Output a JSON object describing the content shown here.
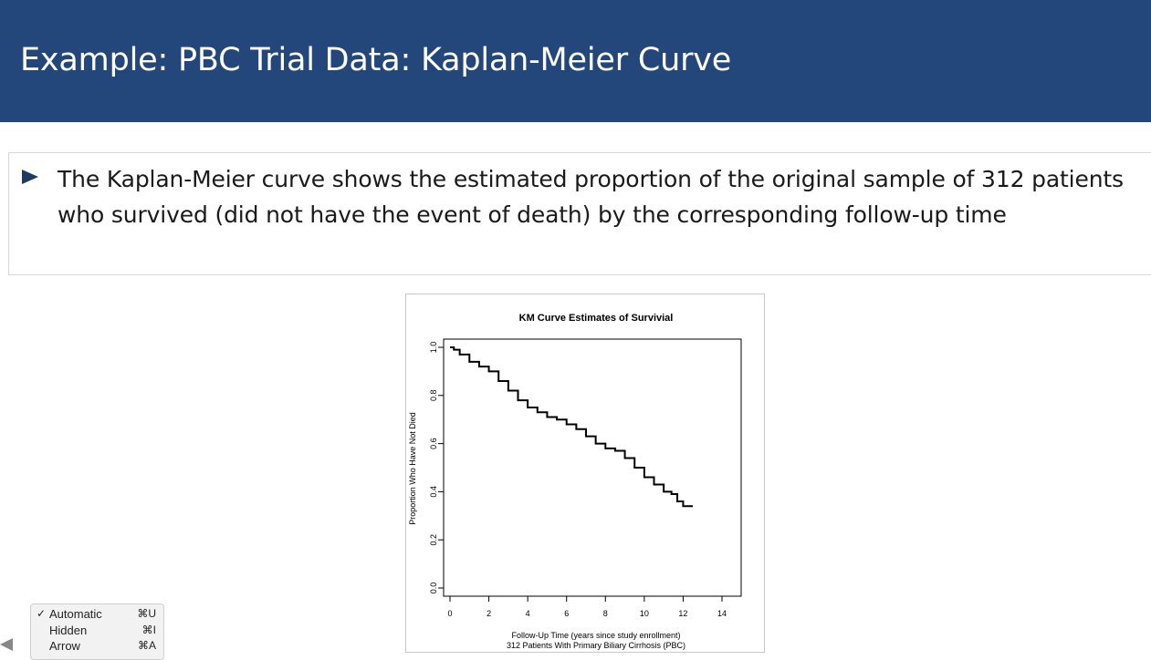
{
  "slide": {
    "title": "Example: PBC Trial Data: Kaplan-Meier Curve",
    "bullet": "The Kaplan-Meier curve shows the estimated proportion of the original sample of 312 patients who survived (did not have the event of death) by the corresponding follow-up time"
  },
  "colors": {
    "header_bg": "#23477b",
    "bullet_marker": "#1f3a5f",
    "curve": "#000000"
  },
  "chart_data": {
    "type": "line",
    "step": true,
    "title": "KM Curve Estimates of  Survivial",
    "xlabel": "Follow-Up Time (years since study enrollment)",
    "xlabel2": "312 Patients With Primary Biliary Cirrhosis (PBC)",
    "ylabel": "Proportion Who Have Not Died",
    "xlim": [
      0,
      14
    ],
    "ylim": [
      0,
      1
    ],
    "xticks": [
      "0",
      "2",
      "4",
      "6",
      "8",
      "10",
      "12",
      "14"
    ],
    "yticks": [
      "0.0",
      "0.2",
      "0.4",
      "0.6",
      "0.8",
      "1.0"
    ],
    "grid": false,
    "series": [
      {
        "x": [
          0,
          0.2,
          0.5,
          1.0,
          1.5,
          2.0,
          2.5,
          3.0,
          3.5,
          4.0,
          4.5,
          5.0,
          5.5,
          6.0,
          6.5,
          7.0,
          7.5,
          8.0,
          8.5,
          9.0,
          9.5,
          10.0,
          10.5,
          11.0,
          11.4,
          11.7,
          12.0,
          12.5
        ],
        "y": [
          1.0,
          0.99,
          0.97,
          0.94,
          0.92,
          0.9,
          0.86,
          0.82,
          0.78,
          0.75,
          0.73,
          0.71,
          0.7,
          0.68,
          0.66,
          0.63,
          0.6,
          0.58,
          0.57,
          0.54,
          0.5,
          0.46,
          0.43,
          0.4,
          0.39,
          0.36,
          0.34,
          0.34
        ]
      }
    ]
  },
  "os_menu": {
    "items": [
      {
        "check": "✓",
        "label": "Automatic",
        "shortcut": "⌘U"
      },
      {
        "check": "",
        "label": "Hidden",
        "shortcut": "⌘I"
      },
      {
        "check": "",
        "label": "Arrow",
        "shortcut": "⌘A"
      }
    ]
  }
}
